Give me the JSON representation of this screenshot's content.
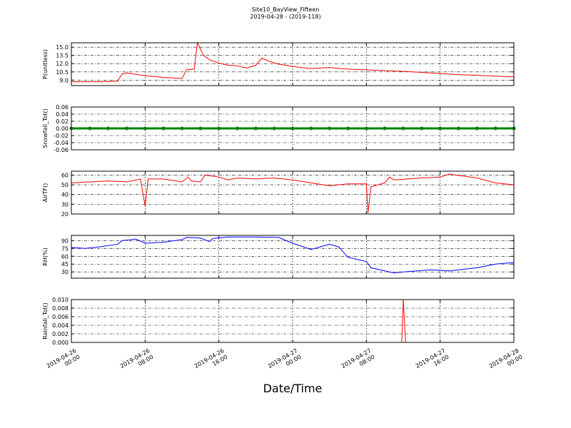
{
  "title": "Site10_BayView_Fifteen",
  "subtitle": "2019-04-28 - (2019-118)",
  "xlabel": "Date/Time",
  "chart_data": [
    {
      "type": "line",
      "ylabel": "P(unitless)",
      "grid": true,
      "xlim": [
        "2019-04-26 00:00",
        "2019-04-28 00:00"
      ],
      "xticks": [
        "2019-04-26 00:00",
        "2019-04-26 08:00",
        "2019-04-26 16:00",
        "2019-04-27 00:00",
        "2019-04-27 08:00",
        "2019-04-27 16:00",
        "2019-04-28 00:00"
      ],
      "ylim": [
        8.0,
        15.8
      ],
      "yticks": [
        {
          "value": 9,
          "label": "9.0"
        },
        10.5,
        {
          "value": 12,
          "label": "12.0"
        },
        13.5,
        {
          "value": 15,
          "label": "15.0"
        }
      ],
      "x": [
        "2019-04-26 00:00",
        "2019-04-26 03:00",
        "2019-04-26 05:00",
        "2019-04-26 05:30",
        "2019-04-26 06:00",
        "2019-04-26 08:00",
        "2019-04-26 10:00",
        "2019-04-26 12:00",
        "2019-04-26 12:30",
        "2019-04-26 13:20",
        "2019-04-26 13:40",
        "2019-04-26 14:20",
        "2019-04-26 15:00",
        "2019-04-26 16:00",
        "2019-04-26 17:00",
        "2019-04-26 18:00",
        "2019-04-26 19:00",
        "2019-04-26 20:00",
        "2019-04-26 20:40",
        "2019-04-26 21:30",
        "2019-04-26 22:30",
        "2019-04-27 00:00",
        "2019-04-27 02:00",
        "2019-04-27 04:00",
        "2019-04-27 06:00",
        "2019-04-27 09:00",
        "2019-04-27 12:00",
        "2019-04-27 15:00",
        "2019-04-27 18:00",
        "2019-04-27 21:00",
        "2019-04-28 00:00"
      ],
      "series": [
        {
          "name": "P",
          "color": "#ff0000",
          "values": [
            8.7,
            8.7,
            8.8,
            10.1,
            10.3,
            9.8,
            9.5,
            9.3,
            10.9,
            11.0,
            15.8,
            13.5,
            12.7,
            12.1,
            11.7,
            11.6,
            11.2,
            11.7,
            13.0,
            12.4,
            11.9,
            11.5,
            11.1,
            11.3,
            11.0,
            10.8,
            10.6,
            10.3,
            10.0,
            9.8,
            9.6
          ]
        }
      ]
    },
    {
      "type": "line",
      "ylabel": "Snowfall_Tot()",
      "grid": true,
      "marker": true,
      "xlim": [
        "2019-04-26 00:00",
        "2019-04-28 00:00"
      ],
      "xticks": [
        "2019-04-26 00:00",
        "2019-04-26 08:00",
        "2019-04-26 16:00",
        "2019-04-27 00:00",
        "2019-04-27 08:00",
        "2019-04-27 16:00",
        "2019-04-28 00:00"
      ],
      "ylim": [
        -0.06,
        0.06
      ],
      "yticks": [
        -0.06,
        -0.04,
        -0.02,
        {
          "value": 0,
          "label": "0.00"
        },
        0.02,
        0.04,
        0.06
      ],
      "x": [
        "2019-04-26 00:00",
        "2019-04-26 02:00",
        "2019-04-26 04:00",
        "2019-04-26 06:00",
        "2019-04-26 08:00",
        "2019-04-26 10:00",
        "2019-04-26 12:00",
        "2019-04-26 14:00",
        "2019-04-26 16:00",
        "2019-04-26 18:00",
        "2019-04-26 20:00",
        "2019-04-26 22:00",
        "2019-04-27 00:00",
        "2019-04-27 02:00",
        "2019-04-27 04:00",
        "2019-04-27 06:00",
        "2019-04-27 08:00",
        "2019-04-27 10:00",
        "2019-04-27 12:00",
        "2019-04-27 14:00",
        "2019-04-27 16:00",
        "2019-04-27 18:00",
        "2019-04-27 20:00",
        "2019-04-27 22:00",
        "2019-04-28 00:00"
      ],
      "series": [
        {
          "name": "Snowfall_Tot",
          "color": "#008000",
          "values": [
            0,
            0,
            0,
            0,
            0,
            0,
            0,
            0,
            0,
            0,
            0,
            0,
            0,
            0,
            0,
            0,
            0,
            0,
            0,
            0,
            0,
            0,
            0,
            0,
            0
          ]
        }
      ]
    },
    {
      "type": "line",
      "ylabel": "AirTF()",
      "grid": true,
      "xlim": [
        "2019-04-26 00:00",
        "2019-04-28 00:00"
      ],
      "xticks": [
        "2019-04-26 00:00",
        "2019-04-26 08:00",
        "2019-04-26 16:00",
        "2019-04-27 00:00",
        "2019-04-27 08:00",
        "2019-04-27 16:00",
        "2019-04-28 00:00"
      ],
      "ylim": [
        20,
        64
      ],
      "yticks": [
        20,
        30,
        40,
        50,
        60
      ],
      "x": [
        "2019-04-26 00:00",
        "2019-04-26 04:00",
        "2019-04-26 06:00",
        "2019-04-26 07:30",
        "2019-04-26 08:00",
        "2019-04-26 08:20",
        "2019-04-26 10:00",
        "2019-04-26 12:00",
        "2019-04-26 12:40",
        "2019-04-26 13:00",
        "2019-04-26 14:00",
        "2019-04-26 14:30",
        "2019-04-26 16:00",
        "2019-04-26 17:00",
        "2019-04-26 18:00",
        "2019-04-26 20:00",
        "2019-04-26 22:00",
        "2019-04-27 00:00",
        "2019-04-27 02:00",
        "2019-04-27 04:00",
        "2019-04-27 06:00",
        "2019-04-27 08:00",
        "2019-04-27 08:10",
        "2019-04-27 08:30",
        "2019-04-27 10:00",
        "2019-04-27 10:30",
        "2019-04-27 11:00",
        "2019-04-27 14:00",
        "2019-04-27 16:00",
        "2019-04-27 17:00",
        "2019-04-27 20:00",
        "2019-04-27 22:00",
        "2019-04-28 00:00"
      ],
      "series": [
        {
          "name": "AirTF",
          "color": "#ff0000",
          "values": [
            52,
            54,
            53,
            56,
            28,
            56,
            56,
            53,
            58,
            54,
            53,
            60,
            58,
            55,
            57,
            56,
            57,
            55,
            52,
            49,
            51,
            51,
            21,
            48,
            52,
            58,
            55,
            57,
            58,
            61,
            57,
            52,
            50
          ]
        }
      ]
    },
    {
      "type": "line",
      "ylabel": "RH(%)",
      "grid": true,
      "xlim": [
        "2019-04-26 00:00",
        "2019-04-28 00:00"
      ],
      "xticks": [
        "2019-04-26 00:00",
        "2019-04-26 08:00",
        "2019-04-26 16:00",
        "2019-04-27 00:00",
        "2019-04-27 08:00",
        "2019-04-27 16:00",
        "2019-04-28 00:00"
      ],
      "ylim": [
        18,
        100
      ],
      "yticks": [
        30,
        45,
        60,
        75,
        90
      ],
      "x": [
        "2019-04-26 00:00",
        "2019-04-26 01:30",
        "2019-04-26 03:00",
        "2019-04-26 05:00",
        "2019-04-26 05:30",
        "2019-04-26 07:00",
        "2019-04-26 08:00",
        "2019-04-26 10:00",
        "2019-04-26 12:00",
        "2019-04-26 12:30",
        "2019-04-26 14:00",
        "2019-04-26 15:00",
        "2019-04-26 15:20",
        "2019-04-26 17:00",
        "2019-04-26 20:00",
        "2019-04-26 22:30",
        "2019-04-27 00:00",
        "2019-04-27 02:00",
        "2019-04-27 04:00",
        "2019-04-27 05:00",
        "2019-04-27 06:00",
        "2019-04-27 07:00",
        "2019-04-27 08:00",
        "2019-04-27 08:30",
        "2019-04-27 10:00",
        "2019-04-27 11:00",
        "2019-04-27 12:00",
        "2019-04-27 15:00",
        "2019-04-27 17:00",
        "2019-04-27 20:00",
        "2019-04-27 22:00",
        "2019-04-28 00:00"
      ],
      "series": [
        {
          "name": "RH",
          "color": "#0000ff",
          "values": [
            77,
            75,
            78,
            83,
            90,
            93,
            85,
            87,
            92,
            96,
            95,
            88,
            94,
            97,
            97,
            96,
            85,
            73,
            83,
            78,
            58,
            54,
            50,
            38,
            32,
            28,
            30,
            34,
            32,
            38,
            45,
            48
          ]
        }
      ]
    },
    {
      "type": "line",
      "ylabel": "Rainfall_Tot()",
      "grid": true,
      "xlim": [
        "2019-04-26 00:00",
        "2019-04-28 00:00"
      ],
      "xticks": [
        {
          "value": "2019-04-26 00:00",
          "label": "2019-04-26\n00:00"
        },
        {
          "value": "2019-04-26 08:00",
          "label": "2019-04-26\n08:00"
        },
        {
          "value": "2019-04-26 16:00",
          "label": "2019-04-26\n16:00"
        },
        {
          "value": "2019-04-27 00:00",
          "label": "2019-04-27\n00:00"
        },
        {
          "value": "2019-04-27 08:00",
          "label": "2019-04-27\n08:00"
        },
        {
          "value": "2019-04-27 16:00",
          "label": "2019-04-27\n16:00"
        },
        {
          "value": "2019-04-28 00:00",
          "label": "2019-04-28\n00:00"
        }
      ],
      "ylim": [
        0,
        0.01
      ],
      "yticks": [
        {
          "value": 0,
          "label": "0.000"
        },
        0.002,
        0.004,
        0.006,
        0.008,
        {
          "value": 0.01,
          "label": "0.010"
        }
      ],
      "x": [
        "2019-04-26 00:00",
        "2019-04-27 11:50",
        "2019-04-27 12:00",
        "2019-04-27 12:15",
        "2019-04-28 00:00"
      ],
      "series": [
        {
          "name": "Rainfall_Tot",
          "color": "#ff0000",
          "values": [
            0,
            0,
            0.01,
            0,
            0
          ]
        }
      ]
    }
  ]
}
